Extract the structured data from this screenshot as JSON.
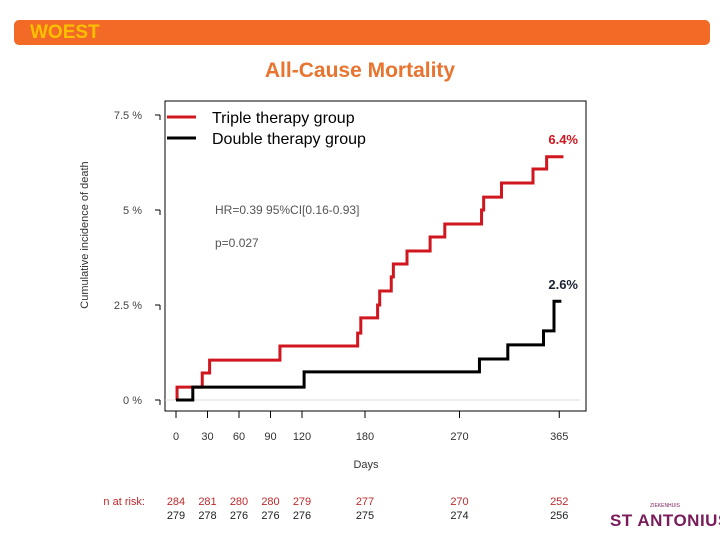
{
  "header": {
    "label": "WOEST"
  },
  "chart_data": {
    "type": "line",
    "step": true,
    "title": "All-Cause Mortality",
    "xlabel": "Days",
    "ylabel": "Cumulative incidence of death",
    "x_ticks": [
      0,
      30,
      60,
      90,
      120,
      180,
      270,
      365
    ],
    "y_ticks": [
      {
        "value": 0,
        "label": "0 %"
      },
      {
        "value": 2.5,
        "label": "2.5 %"
      },
      {
        "value": 5,
        "label": "5 %"
      },
      {
        "value": 7.5,
        "label": "7.5 %"
      }
    ],
    "xlim": [
      -10,
      390
    ],
    "ylim": [
      -0.3,
      7.8
    ],
    "legend_position": "top-left",
    "series": [
      {
        "name": "Triple therapy group",
        "color": "#d0161e",
        "end_label": "6.4%",
        "points": [
          [
            0,
            0
          ],
          [
            1,
            0.34
          ],
          [
            25,
            0.71
          ],
          [
            32,
            1.05
          ],
          [
            99,
            1.42
          ],
          [
            173,
            1.76
          ],
          [
            176,
            2.16
          ],
          [
            192,
            2.5
          ],
          [
            194,
            2.87
          ],
          [
            205,
            3.24
          ],
          [
            207,
            3.58
          ],
          [
            220,
            3.92
          ],
          [
            242,
            4.29
          ],
          [
            256,
            4.63
          ],
          [
            291,
            5.0
          ],
          [
            293,
            5.34
          ],
          [
            310,
            5.71
          ],
          [
            340,
            6.08
          ],
          [
            353,
            6.4
          ],
          [
            369,
            6.4
          ]
        ]
      },
      {
        "name": "Double therapy group",
        "color": "#000000",
        "end_label": "2.6%",
        "points": [
          [
            0,
            0
          ],
          [
            16,
            0.34
          ],
          [
            122,
            0.74
          ],
          [
            289,
            1.08
          ],
          [
            316,
            1.45
          ],
          [
            350,
            1.82
          ],
          [
            360,
            2.6
          ],
          [
            367,
            2.6
          ]
        ]
      }
    ],
    "annotations": [
      "HR=0.39  95%CI[0.16-0.93]",
      "p=0.027"
    ],
    "risk_table": {
      "label": "n at risk:",
      "days": [
        0,
        30,
        60,
        90,
        120,
        180,
        270,
        365
      ],
      "triple": [
        "284",
        "281",
        "280",
        "280",
        "279",
        "277",
        "270",
        "252"
      ],
      "double": [
        "279",
        "278",
        "276",
        "276",
        "276",
        "275",
        "274",
        "256"
      ],
      "triple_color": "#c0282d"
    }
  },
  "logo": {
    "small": "ZIEKENHUIS",
    "big": "ST ANTONIUS"
  }
}
